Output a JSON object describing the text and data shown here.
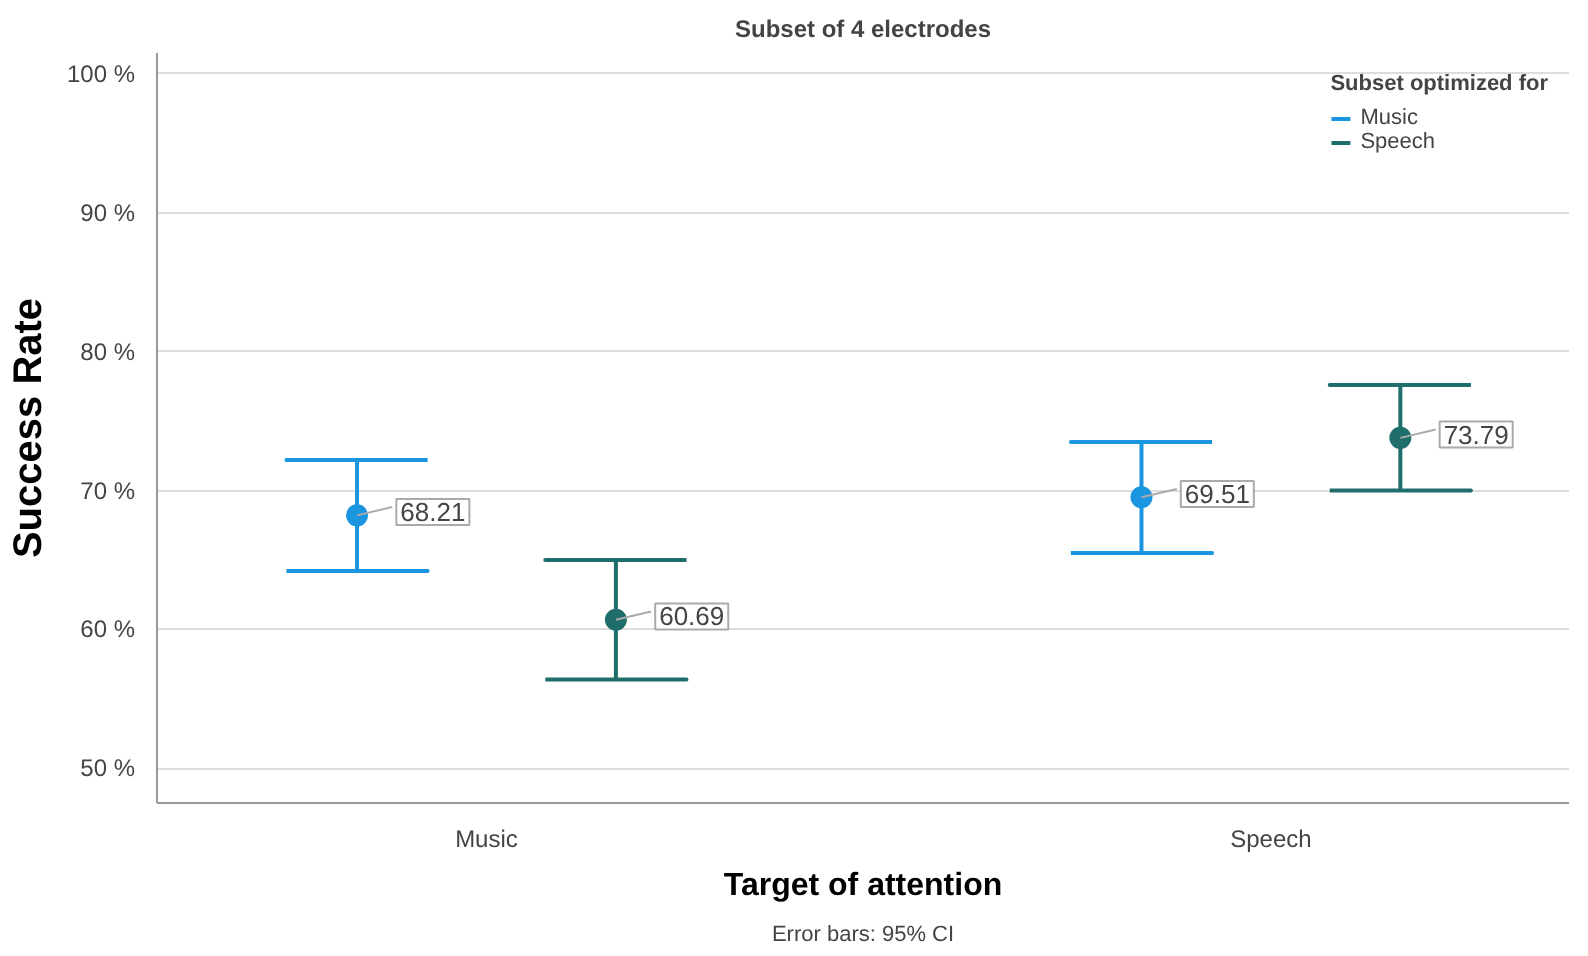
{
  "chart_data": {
    "type": "scatter",
    "title": "Subset of 4 electrodes",
    "xlabel": "Target of attention",
    "ylabel": "Success Rate",
    "legend_title": "Subset optimized for",
    "categories": [
      "Music",
      "Speech"
    ],
    "series": [
      {
        "name": "Music",
        "color": "#1a95e0",
        "values": [
          68.21,
          69.51
        ],
        "errors": [
          [
            64.2,
            72.2
          ],
          [
            65.5,
            73.5
          ]
        ]
      },
      {
        "name": "Speech",
        "color": "#1f6e6c",
        "values": [
          60.69,
          73.79
        ],
        "errors": [
          [
            56.4,
            65.0
          ],
          [
            70.0,
            77.6
          ]
        ]
      }
    ],
    "ylim": [
      47.5,
      101.5
    ],
    "yticks": [
      {
        "value": 50,
        "label": "50 %"
      },
      {
        "value": 60,
        "label": "60 %"
      },
      {
        "value": 70,
        "label": "70 %"
      },
      {
        "value": 80,
        "label": "80 %"
      },
      {
        "value": 90,
        "label": "90 %"
      },
      {
        "value": 100,
        "label": "100 %"
      }
    ],
    "grid": "y",
    "legend": "top right",
    "marker": "circle",
    "data_labels": true,
    "annotations": [
      "Error bars: 95% CI"
    ]
  }
}
